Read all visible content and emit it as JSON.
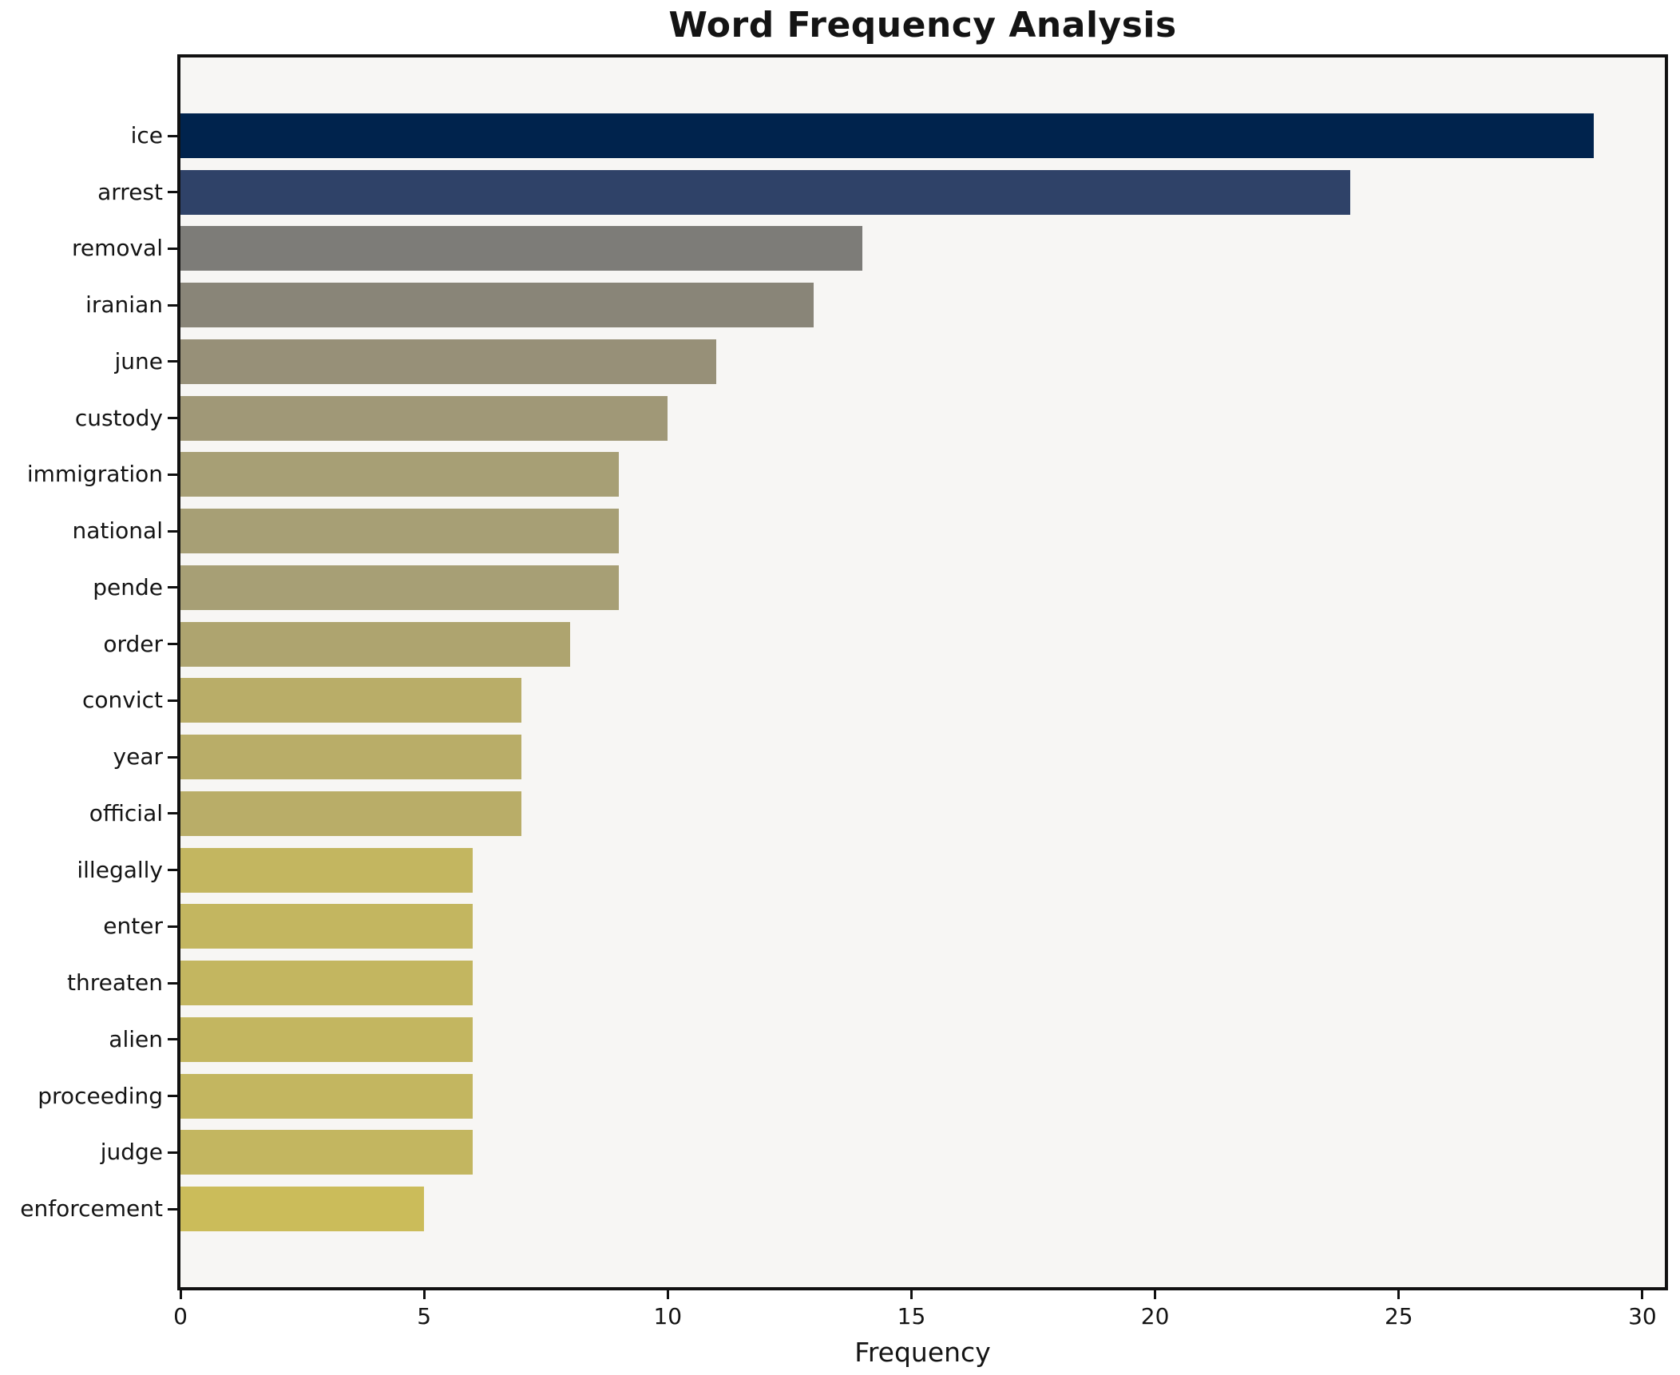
{
  "chart_data": {
    "type": "bar",
    "orientation": "horizontal",
    "title": "Word Frequency Analysis",
    "xlabel": "Frequency",
    "ylabel": "",
    "categories": [
      "ice",
      "arrest",
      "removal",
      "iranian",
      "june",
      "custody",
      "immigration",
      "national",
      "pende",
      "order",
      "convict",
      "year",
      "official",
      "illegally",
      "enter",
      "threaten",
      "alien",
      "proceeding",
      "judge",
      "enforcement"
    ],
    "values": [
      29,
      24,
      14,
      13,
      11,
      10,
      9,
      9,
      9,
      8,
      7,
      7,
      7,
      6,
      6,
      6,
      6,
      6,
      6,
      5
    ],
    "bar_colors": [
      "#00234d",
      "#2f4268",
      "#7d7c78",
      "#898578",
      "#979078",
      "#a09877",
      "#a79f75",
      "#a79f75",
      "#a79f75",
      "#aea46f",
      "#b9ad68",
      "#b9ad68",
      "#b9ad68",
      "#c3b660",
      "#c3b660",
      "#c3b660",
      "#c3b660",
      "#c3b660",
      "#c3b660",
      "#cbbc5a"
    ],
    "xticks": [
      0,
      5,
      10,
      15,
      20,
      25,
      30
    ],
    "xlim": [
      0,
      30.46
    ],
    "grid": false,
    "legend": null,
    "colors": {
      "plot_background": "#f7f6f4",
      "figure_background": "#ffffff",
      "spine": "#111111",
      "text": "#141414"
    }
  }
}
